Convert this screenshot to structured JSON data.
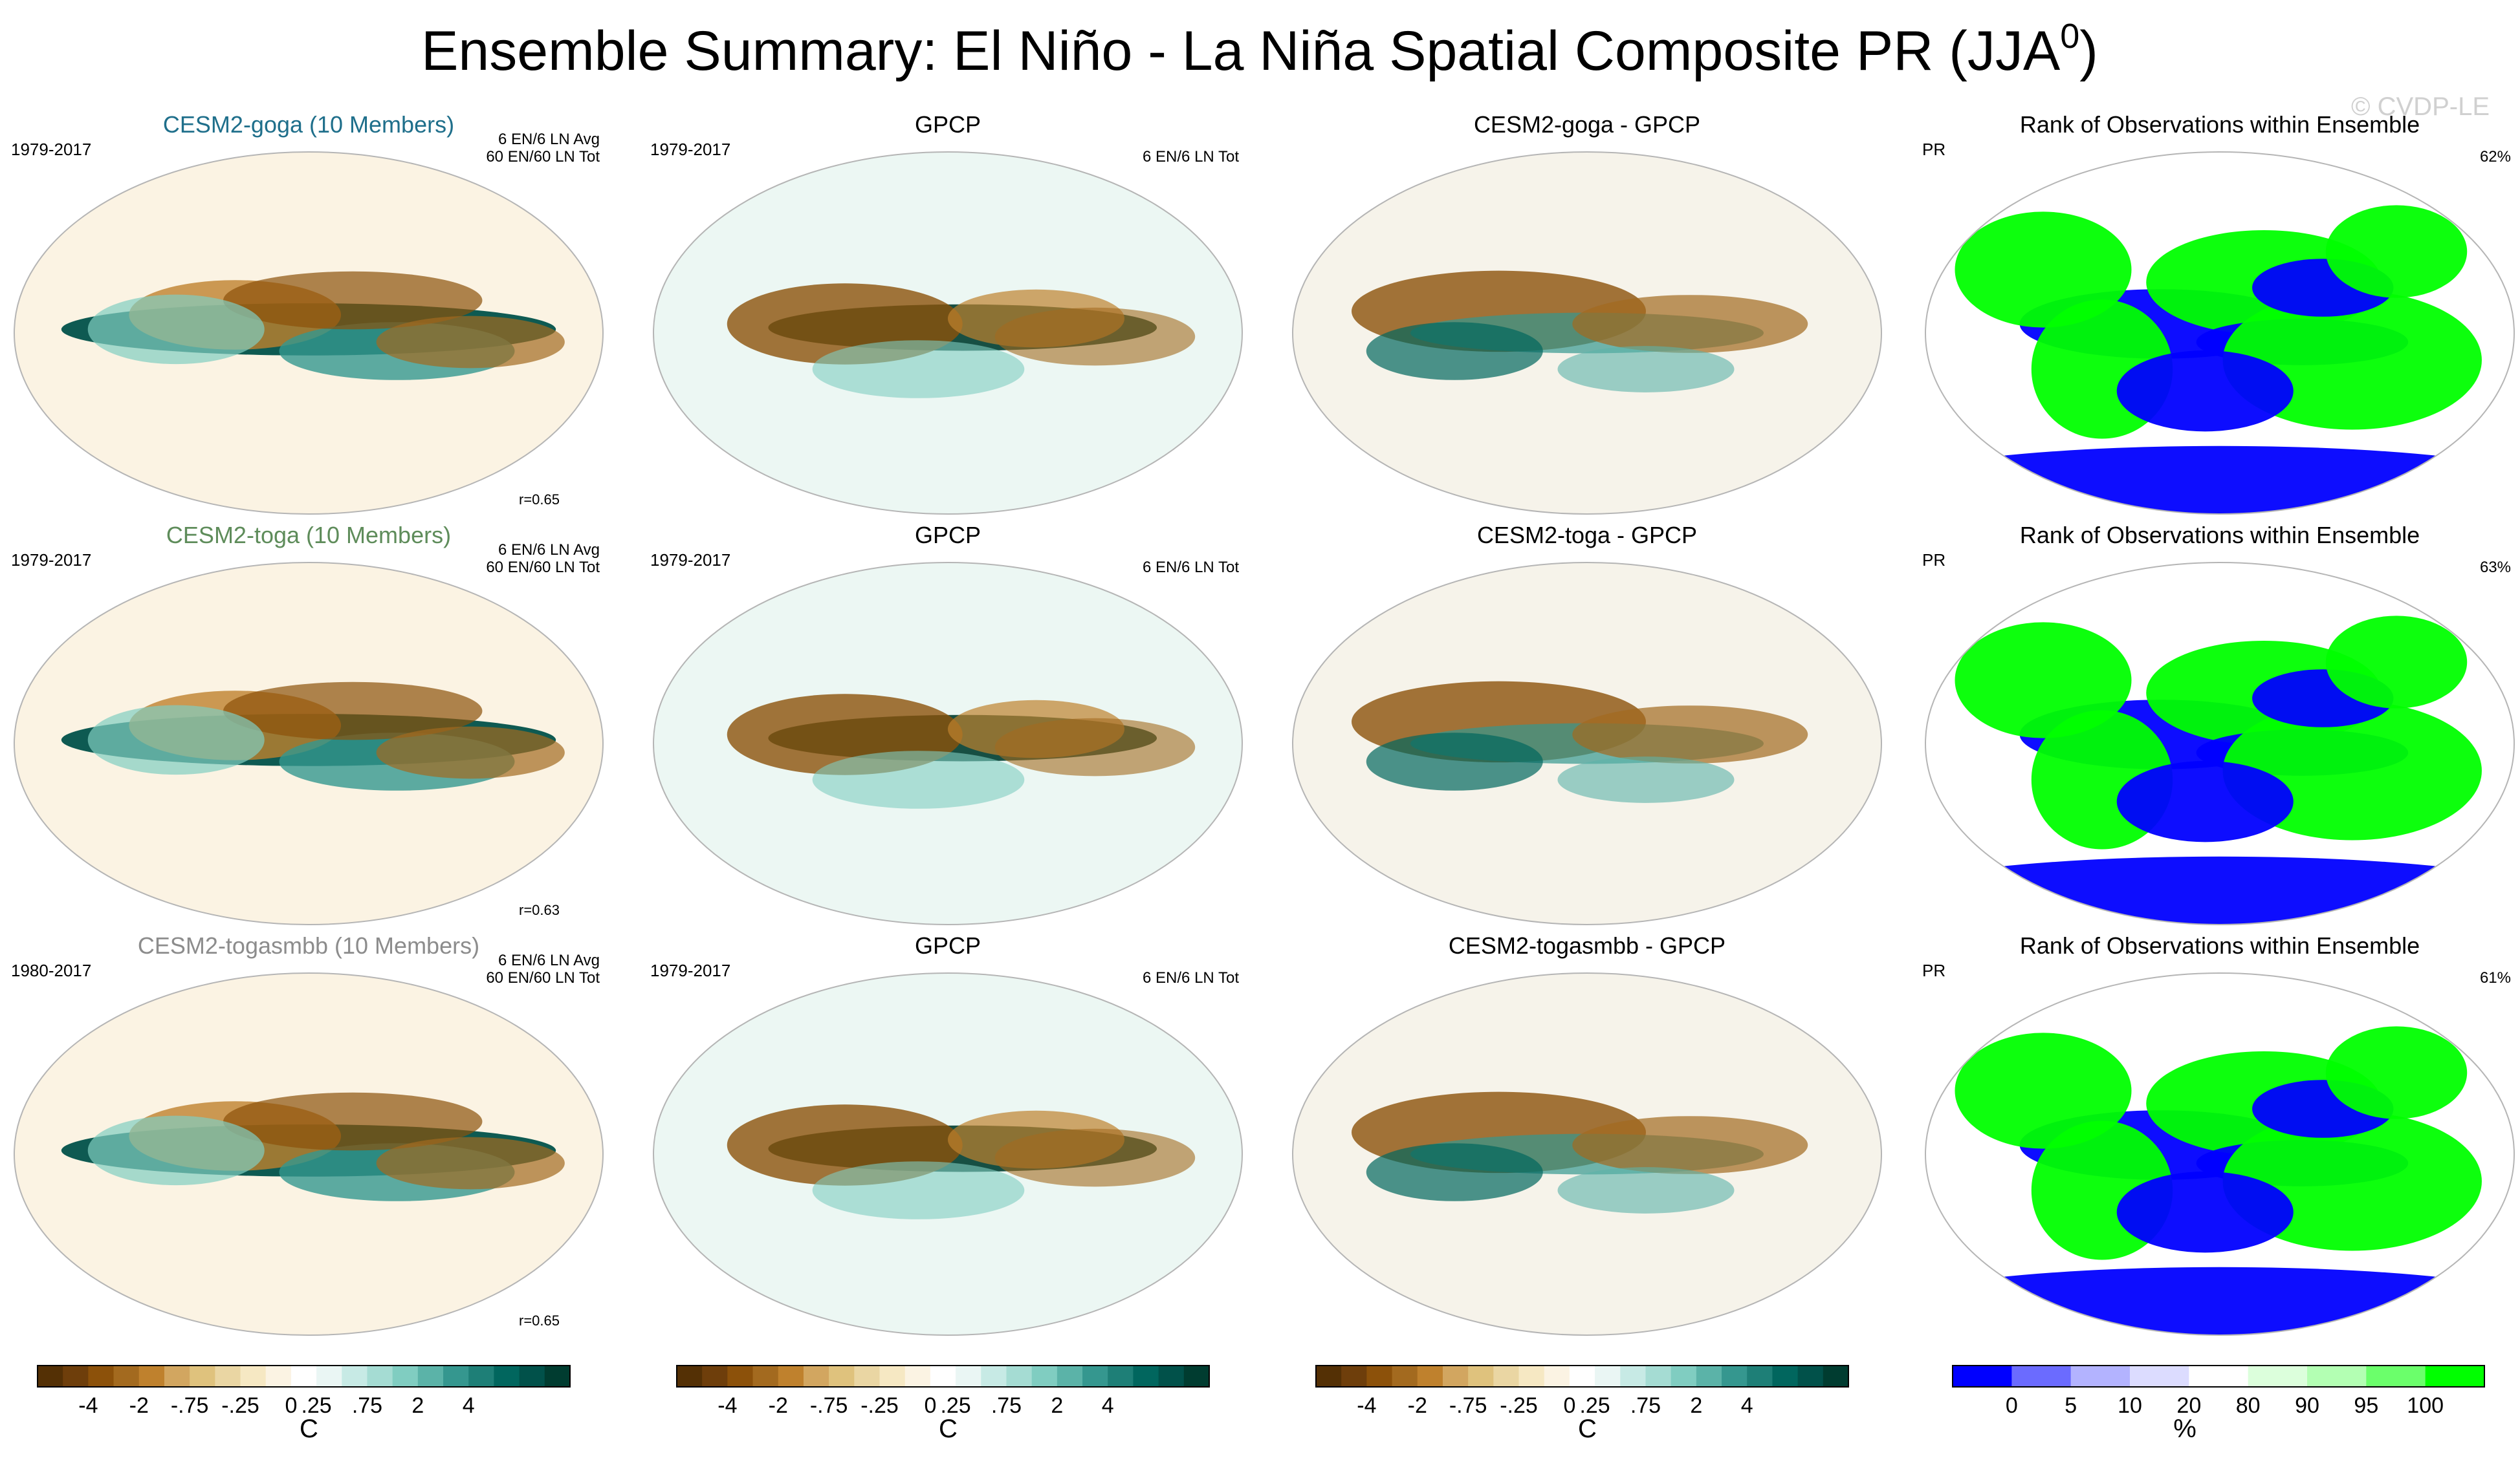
{
  "figure": {
    "title": "Ensemble Summary: El Niño - La Niña Spatial Composite PR (JJA",
    "title_superscript": "0",
    "title_close": ")",
    "watermark": "© CVDP-LE",
    "colors": {
      "brown_dark": "#543005",
      "brown_mid": "#bf812d",
      "tan": "#f6e8c3",
      "white": "#ffffff",
      "teal_light": "#c7eae5",
      "teal_mid": "#35978f",
      "teal_dark": "#003c30",
      "rank_blue": "#0000ff",
      "rank_green": "#00ff00"
    }
  },
  "chart_data": [
    {
      "type": "heatmap",
      "panel": "model",
      "row": 0,
      "col": 0,
      "title": "CESM2-goga (10 Members)",
      "title_color": "#1f6f8b",
      "left_label": "1979-2017",
      "right_label_1": "6 EN/6 LN Avg",
      "right_label_2": "60 EN/60 LN Tot",
      "corner_label": "r=0.65",
      "units": "C"
    },
    {
      "type": "heatmap",
      "panel": "obs",
      "row": 0,
      "col": 1,
      "title": "GPCP",
      "left_label": "1979-2017",
      "right_label_1": "6 EN/6 LN Tot",
      "units": "C"
    },
    {
      "type": "heatmap",
      "panel": "diff",
      "row": 0,
      "col": 2,
      "title": "CESM2-goga - GPCP",
      "units": "C"
    },
    {
      "type": "heatmap",
      "panel": "rank",
      "row": 0,
      "col": 3,
      "title": "Rank of Observations within Ensemble",
      "left_label": "PR",
      "right_label_1": "62%",
      "units": "%"
    },
    {
      "type": "heatmap",
      "panel": "model",
      "row": 1,
      "col": 0,
      "title": "CESM2-toga (10 Members)",
      "title_color": "#5e8c5a",
      "left_label": "1979-2017",
      "right_label_1": "6 EN/6 LN Avg",
      "right_label_2": "60 EN/60 LN Tot",
      "corner_label": "r=0.63",
      "units": "C"
    },
    {
      "type": "heatmap",
      "panel": "obs",
      "row": 1,
      "col": 1,
      "title": "GPCP",
      "left_label": "1979-2017",
      "right_label_1": "6 EN/6 LN Tot",
      "units": "C"
    },
    {
      "type": "heatmap",
      "panel": "diff",
      "row": 1,
      "col": 2,
      "title": "CESM2-toga - GPCP",
      "units": "C"
    },
    {
      "type": "heatmap",
      "panel": "rank",
      "row": 1,
      "col": 3,
      "title": "Rank of Observations within Ensemble",
      "left_label": "PR",
      "right_label_1": "63%",
      "units": "%"
    },
    {
      "type": "heatmap",
      "panel": "model",
      "row": 2,
      "col": 0,
      "title": "CESM2-togasmbb (10 Members)",
      "title_color": "#8c8c8c",
      "left_label": "1980-2017",
      "right_label_1": "6 EN/6 LN Avg",
      "right_label_2": "60 EN/60 LN Tot",
      "corner_label": "r=0.65",
      "units": "C"
    },
    {
      "type": "heatmap",
      "panel": "obs",
      "row": 2,
      "col": 1,
      "title": "GPCP",
      "left_label": "1979-2017",
      "right_label_1": "6 EN/6 LN Tot",
      "units": "C"
    },
    {
      "type": "heatmap",
      "panel": "diff",
      "row": 2,
      "col": 2,
      "title": "CESM2-togasmbb - GPCP",
      "units": "C"
    },
    {
      "type": "heatmap",
      "panel": "rank",
      "row": 2,
      "col": 3,
      "title": "Rank of Observations within Ensemble",
      "left_label": "PR",
      "right_label_1": "61%",
      "units": "%"
    }
  ],
  "colorbars": [
    {
      "name": "composite-colorbar",
      "title": "C",
      "colors": [
        "#543005",
        "#6e3e0b",
        "#8c510a",
        "#a36a1f",
        "#bf812d",
        "#d2a660",
        "#dfc27d",
        "#ead6a3",
        "#f6e8c3",
        "#fbf3e3",
        "#ffffff",
        "#eaf6f4",
        "#c7eae5",
        "#a5dcd3",
        "#80cdc1",
        "#5bb3a8",
        "#35978f",
        "#1e7f77",
        "#01665e",
        "#01514a",
        "#003c30"
      ],
      "labels": [
        "-4",
        "-2",
        "-.75",
        "-.25",
        "0",
        ".25",
        ".75",
        "2",
        "4"
      ]
    },
    {
      "name": "rank-colorbar",
      "title": "%",
      "colors": [
        "#0000ff",
        "#6b6bff",
        "#b3b3ff",
        "#dcdcff",
        "#ffffff",
        "#dcffdc",
        "#b3ffb3",
        "#6bff6b",
        "#00ff00"
      ],
      "labels": [
        "0",
        "5",
        "10",
        "20",
        "80",
        "90",
        "95",
        "100"
      ]
    }
  ]
}
